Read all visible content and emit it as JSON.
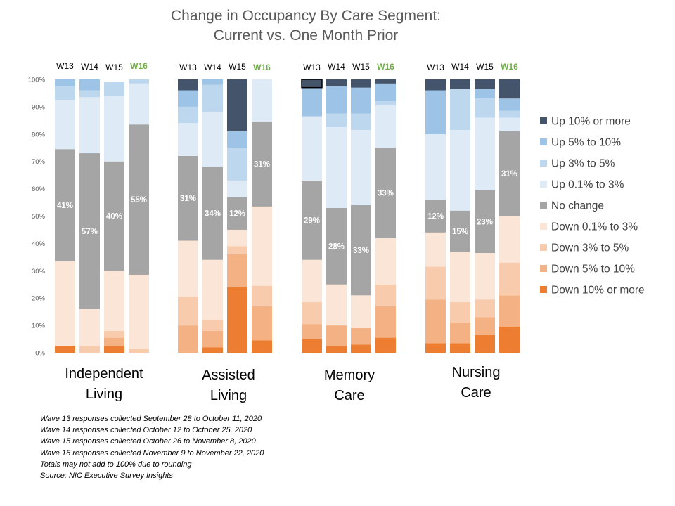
{
  "chart_data": {
    "type": "bar",
    "stacked": true,
    "title": "Change in Occupancy By Care Segment:",
    "subtitle": "Current vs. One Month Prior",
    "y_ticks": [
      "0%",
      "10%",
      "20%",
      "30%",
      "40%",
      "50%",
      "60%",
      "70%",
      "80%",
      "90%",
      "100%"
    ],
    "ylim": [
      0,
      100
    ],
    "legend_position": "right",
    "series": [
      {
        "name": "Down 10% or more",
        "color": "#ED7D31"
      },
      {
        "name": "Down 5% to 10%",
        "color": "#F4B183"
      },
      {
        "name": "Down 3% to 5%",
        "color": "#F8CBAD"
      },
      {
        "name": "Down 0.1% to 3%",
        "color": "#FBE5D6"
      },
      {
        "name": "No change",
        "color": "#A5A5A5"
      },
      {
        "name": "Up 0.1% to 3%",
        "color": "#DEEBF7"
      },
      {
        "name": "Up 3% to 5%",
        "color": "#BDD7EE"
      },
      {
        "name": "Up 5% to 10%",
        "color": "#9DC3E6"
      },
      {
        "name": "Up 10% or more",
        "color": "#44546A"
      }
    ],
    "legend_order": [
      "Up 10% or more",
      "Up 5% to 10%",
      "Up 3% to 5%",
      "Up 0.1% to 3%",
      "No change",
      "Down 0.1% to 3%",
      "Down 3% to 5%",
      "Down 5% to 10%",
      "Down 10% or more"
    ],
    "wave_label_colors": {
      "W13": "#000000",
      "W14": "#000000",
      "W15": "#000000",
      "W16": "#70AD47"
    },
    "groups": [
      {
        "name": "Independent Living",
        "name_lines": [
          "Independent",
          "Living"
        ],
        "bars": [
          {
            "wave": "W13",
            "values": [
              2.5,
              0,
              0,
              31,
              41,
              18,
              5,
              2.5,
              0
            ],
            "label": "41%"
          },
          {
            "wave": "W14",
            "values": [
              0,
              0,
              2.5,
              13.5,
              57,
              20.5,
              2.5,
              4,
              0
            ],
            "label": "57%"
          },
          {
            "wave": "W15",
            "values": [
              2.5,
              3,
              2.5,
              22,
              40,
              24,
              5,
              0,
              0
            ],
            "label": "40%"
          },
          {
            "wave": "W16",
            "values": [
              0,
              0,
              1.5,
              27,
              55,
              15,
              1.5,
              0,
              0
            ],
            "label": "55%"
          }
        ]
      },
      {
        "name": "Assisted Living",
        "name_lines": [
          "Assisted",
          "Living"
        ],
        "bars": [
          {
            "wave": "W13",
            "values": [
              0,
              10,
              10.5,
              20.5,
              31,
              12,
              6,
              6,
              4
            ],
            "label": "31%"
          },
          {
            "wave": "W14",
            "values": [
              2,
              6,
              4,
              22,
              34,
              20,
              10,
              2,
              0
            ],
            "label": "34%"
          },
          {
            "wave": "W15",
            "values": [
              24,
              12,
              3,
              6,
              12,
              6,
              12,
              6,
              19
            ],
            "label": "12%"
          },
          {
            "wave": "W16",
            "values": [
              4.5,
              12.5,
              7.5,
              29,
              31,
              15.5,
              0,
              0,
              0
            ],
            "label": "31%"
          }
        ]
      },
      {
        "name": "Memory Care",
        "name_lines": [
          "Memory",
          "Care"
        ],
        "bars": [
          {
            "wave": "W13",
            "values": [
              5,
              5.5,
              8,
              15.5,
              29,
              23.5,
              0,
              10.5,
              3
            ],
            "label": "29%"
          },
          {
            "wave": "W14",
            "values": [
              2.5,
              7.5,
              0,
              15,
              28,
              29.5,
              5,
              10,
              2.5
            ],
            "label": "28%"
          },
          {
            "wave": "W15",
            "values": [
              3,
              6,
              0,
              12,
              33,
              27.5,
              6,
              9.5,
              3
            ],
            "label": "33%"
          },
          {
            "wave": "W16",
            "values": [
              5.5,
              11.5,
              8,
              17,
              33,
              15.5,
              1.5,
              6.5,
              1.5
            ],
            "label": "33%"
          }
        ]
      },
      {
        "name": "Nursing Care",
        "name_lines": [
          "Nursing",
          "Care"
        ],
        "bars": [
          {
            "wave": "W13",
            "values": [
              3.5,
              16,
              12,
              12.5,
              12,
              24,
              0,
              16,
              4
            ],
            "label": "12%"
          },
          {
            "wave": "W14",
            "values": [
              3.5,
              7.5,
              7.5,
              18.5,
              15,
              29.5,
              15,
              0,
              3.5
            ],
            "label": "15%"
          },
          {
            "wave": "W15",
            "values": [
              6.5,
              6.5,
              6.5,
              17,
              23,
              26.5,
              7,
              3.5,
              3.5
            ],
            "label": "23%"
          },
          {
            "wave": "W16",
            "values": [
              9.5,
              11.5,
              12,
              17,
              31,
              5,
              2.5,
              4.5,
              7
            ],
            "label": "31%"
          }
        ]
      }
    ]
  },
  "notes": [
    "Wave 13 responses collected  September 28 to October 11, 2020",
    "Wave 14 responses collected  October 12 to October 25, 2020",
    "Wave 15 responses collected  October 26 to November 8, 2020",
    "Wave 16 responses collected  November 9 to November 22, 2020",
    "Totals may not add to 100% due to rounding",
    "Source: NIC Executive Survey Insights"
  ]
}
